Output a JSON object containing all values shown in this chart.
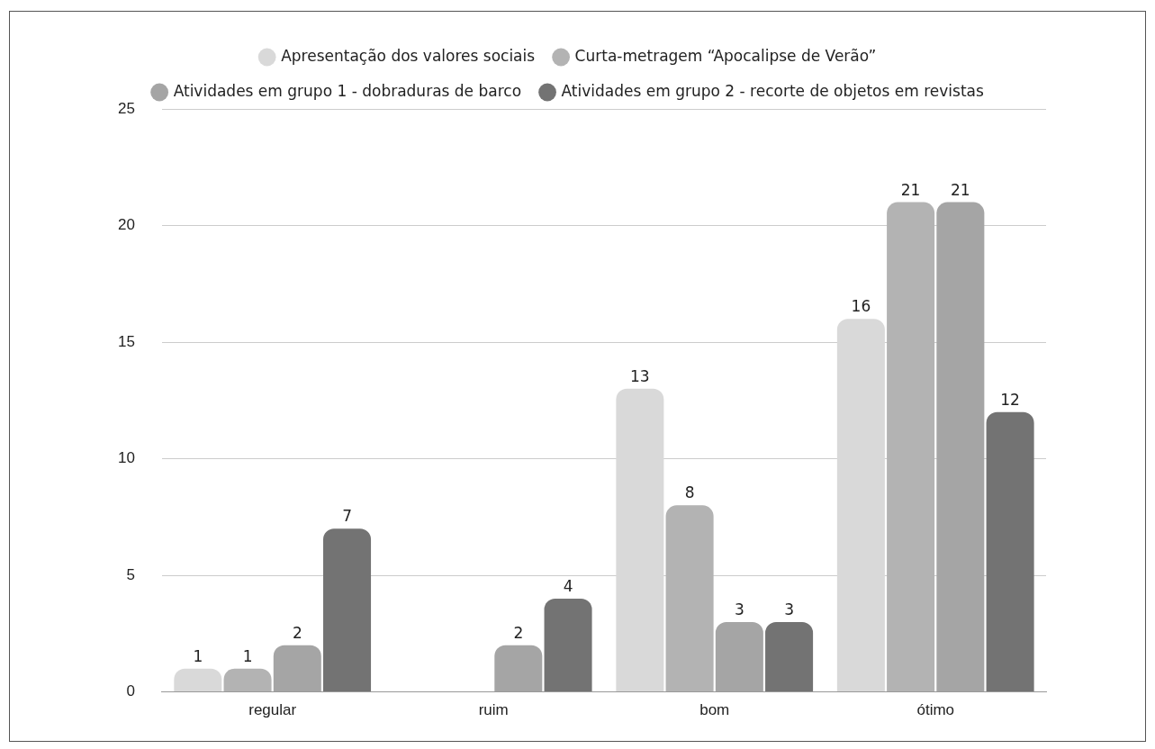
{
  "chart_data": {
    "type": "bar",
    "categories": [
      "regular",
      "ruim",
      "bom",
      "ótimo"
    ],
    "series": [
      {
        "name": "Apresentação dos valores sociais",
        "color": "#d9d9d9",
        "values": [
          1,
          null,
          13,
          16
        ]
      },
      {
        "name": "Curta-metragem “Apocalipse de Verão”",
        "color": "#b3b3b3",
        "values": [
          1,
          null,
          8,
          21
        ]
      },
      {
        "name": "Atividades em grupo 1 - dobraduras de barco",
        "color": "#a5a5a5",
        "values": [
          2,
          2,
          3,
          21
        ]
      },
      {
        "name": "Atividades em grupo 2 - recorte de objetos em revistas",
        "color": "#737373",
        "values": [
          7,
          4,
          3,
          12
        ]
      }
    ],
    "ylim": [
      0,
      25
    ],
    "yticks": [
      0,
      5,
      10,
      15,
      20,
      25
    ],
    "grid": "y",
    "legend": "top",
    "data_labels": true
  }
}
